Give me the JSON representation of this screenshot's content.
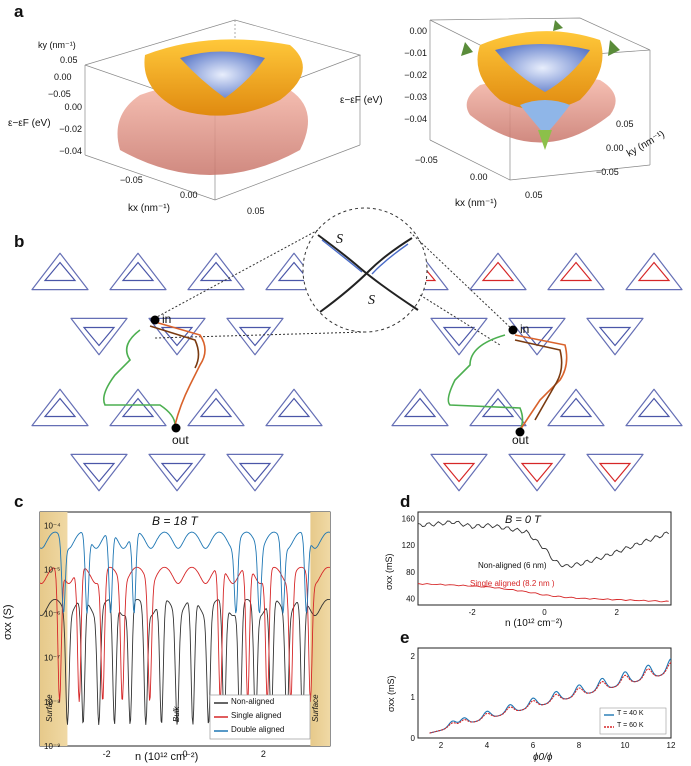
{
  "panels": {
    "a": {
      "label": "a",
      "left_plot": {
        "ylabel": "ky (nm⁻¹)",
        "zlabel": "ε−εF (eV)",
        "xlabel": "kx (nm⁻¹)",
        "ky_ticks": [
          "0.05",
          "0.00",
          "−0.05"
        ],
        "z_ticks": [
          "0.00",
          "−0.02",
          "−0.04"
        ],
        "kx_ticks": [
          "−0.05",
          "0.00",
          "0.05"
        ]
      },
      "right_plot": {
        "zlabel": "ε−εF (eV)",
        "xlabel": "kx (nm⁻¹)",
        "ylabel": "ky (nm⁻¹)",
        "z_ticks": [
          "0.00",
          "−0.01",
          "−0.02",
          "−0.03",
          "−0.04"
        ],
        "kx_ticks": [
          "−0.05",
          "0.00",
          "0.05"
        ],
        "ky_ticks": [
          "0.05",
          "0.00",
          "−0.05"
        ]
      }
    },
    "b": {
      "label": "b",
      "in_label": "in",
      "out_label": "out",
      "spin_up": "S⃗",
      "spin_down": "S⃗"
    },
    "c": {
      "label": "c",
      "title": "B = 18 T",
      "ylabel": "σxx (S)",
      "xlabel": "n (10¹² cm⁻²)",
      "region_left": "Surface",
      "region_mid": "Bulk",
      "region_right": "Surface"
    },
    "d": {
      "label": "d",
      "title": "B = 0 T",
      "ylabel": "σxx (mS)",
      "xlabel": "n (10¹² cm⁻²)",
      "annot_nonaligned": "Non-aligned (6 nm)",
      "annot_single": "Single aligned (8.2 nm )"
    },
    "e": {
      "label": "e",
      "ylabel": "σxx (mS)",
      "xlabel": "ϕ0/ϕ"
    }
  },
  "chart_data": [
    {
      "type": "line",
      "panel": "c",
      "title": "B = 18 T",
      "xlabel": "n (10¹² cm⁻²)",
      "ylabel": "σxx (S)",
      "yscale": "log",
      "xlim": [
        -3.7,
        3.7
      ],
      "ylim": [
        1e-09,
        0.0002
      ],
      "xticks": [
        "-2",
        "0",
        "2"
      ],
      "yticks": [
        "10⁻⁴",
        "10⁻⁵",
        "10⁻⁶",
        "10⁻⁷",
        "10⁻⁸",
        "10⁻⁹"
      ],
      "legend_position": "bottom-right",
      "colors": {
        "Non-aligned": "#333333",
        "Single aligned": "#d62728",
        "Double aligned": "#1f77b4",
        "surface": "#e6c98a"
      },
      "series": [
        {
          "name": "Non-aligned",
          "baseline": 1.5e-06,
          "dips": [
            -3.0,
            -2.6,
            -2.2,
            -1.8,
            -1.4,
            -1.0,
            -0.6,
            -0.2,
            0.2,
            0.6,
            1.0,
            1.4,
            1.8,
            2.2,
            2.6,
            3.0
          ],
          "dip_min": 3e-09
        },
        {
          "name": "Single aligned",
          "baseline": 8e-06,
          "dips": [
            -3.2,
            -2.7,
            -2.1,
            -1.6,
            -0.9,
            0.9,
            1.6,
            2.1,
            2.7,
            3.2
          ],
          "dip_min": 1e-08
        },
        {
          "name": "Double aligned",
          "baseline": 5e-05,
          "dips": [
            -3.1,
            -2.5,
            -1.9,
            -1.3,
            1.3,
            1.9,
            2.5,
            3.1
          ],
          "dip_min": 1e-06
        }
      ],
      "surface_regions": [
        [
          -3.7,
          -3.0
        ],
        [
          3.2,
          3.7
        ]
      ]
    },
    {
      "type": "line",
      "panel": "d",
      "title": "B = 0 T",
      "xlabel": "n (10¹² cm⁻²)",
      "ylabel": "σxx (mS)",
      "xlim": [
        -3.5,
        3.5
      ],
      "ylim": [
        30,
        170
      ],
      "xticks": [
        "-2",
        "0",
        "2"
      ],
      "yticks": [
        "40",
        "80",
        "120",
        "160"
      ],
      "series": [
        {
          "name": "Non-aligned (6 nm)",
          "x": [
            -3.5,
            -3.0,
            -2.5,
            -2.0,
            -1.5,
            -1.0,
            -0.5,
            0.0,
            0.3,
            0.6,
            1.0,
            1.5,
            2.0,
            2.5,
            3.0,
            3.5
          ],
          "y": [
            150,
            152,
            155,
            148,
            150,
            145,
            140,
            115,
            95,
            88,
            92,
            100,
            110,
            120,
            130,
            140
          ]
        },
        {
          "name": "Single aligned (8.2 nm )",
          "x": [
            -3.5,
            -2.5,
            -1.5,
            -0.5,
            0.0,
            0.5,
            1.0,
            2.0,
            3.0,
            3.5
          ],
          "y": [
            62,
            60,
            57,
            50,
            45,
            42,
            40,
            38,
            36,
            35
          ]
        }
      ]
    },
    {
      "type": "line",
      "panel": "e",
      "xlabel": "ϕ0/ϕ",
      "ylabel": "σxx (mS)",
      "xlim": [
        1,
        12
      ],
      "ylim": [
        0,
        2.2
      ],
      "xticks": [
        "2",
        "4",
        "6",
        "8",
        "10",
        "12"
      ],
      "yticks": [
        "0",
        "1",
        "2"
      ],
      "legend_position": "bottom-right",
      "series": [
        {
          "name": "T = 40 K",
          "color": "#1f77b4"
        },
        {
          "name": "T = 60 K",
          "color": "#d62728"
        }
      ],
      "peaks": [
        2.5,
        3.0,
        4.0,
        5.0,
        6.0,
        7.0,
        8.0,
        9.0,
        10.0,
        11.0,
        12.0
      ]
    }
  ]
}
